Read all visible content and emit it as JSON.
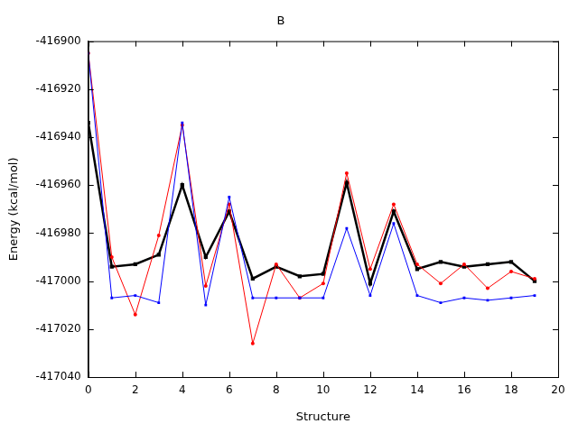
{
  "chart_data": {
    "type": "line",
    "title": "B",
    "x_label": "Structure",
    "y_label": "Energy (kcal/mol)",
    "x": [
      0,
      1,
      2,
      3,
      4,
      5,
      6,
      7,
      8,
      9,
      10,
      11,
      12,
      13,
      14,
      15,
      16,
      17,
      18,
      19
    ],
    "series": [
      {
        "color": "#0000ff",
        "marker": "square",
        "line_style": "solid",
        "values": [
          -416905,
          -417007,
          -417006,
          -417009,
          -416934,
          -417010,
          -416965,
          -417007,
          -417007,
          -417007,
          -417007,
          -416978,
          -417006,
          -416976,
          -417006,
          -417009,
          -417007,
          -417008,
          -417007,
          -417006
        ]
      },
      {
        "color": "#ff0000",
        "marker": "circle",
        "line_style": "solid",
        "values": [
          -416905,
          -416990,
          -417014,
          -416981,
          -416935,
          -417002,
          -416968,
          -417026,
          -416993,
          -417007,
          -417001,
          -416955,
          -416995,
          -416968,
          -416993,
          -417001,
          -416993,
          -417003,
          -416996,
          -416999
        ]
      },
      {
        "color": "#000000",
        "marker": "square",
        "line_style": "solid",
        "values": [
          -416934,
          -416994,
          -416993,
          -416989,
          -416960,
          -416990,
          -416971,
          -416999,
          -416994,
          -416998,
          -416997,
          -416959,
          -417001,
          -416971,
          -416995,
          -416992,
          -416994,
          -416993,
          -416992,
          -417000
        ]
      }
    ],
    "xlim": [
      0,
      20
    ],
    "xticks": [
      0,
      2,
      4,
      6,
      8,
      10,
      12,
      14,
      16,
      18,
      20
    ],
    "ylim": [
      -417040,
      -416900
    ],
    "yticks": [
      -417040,
      -417020,
      -417000,
      -416980,
      -416960,
      -416940,
      -416920,
      -416900
    ],
    "grid": false
  }
}
